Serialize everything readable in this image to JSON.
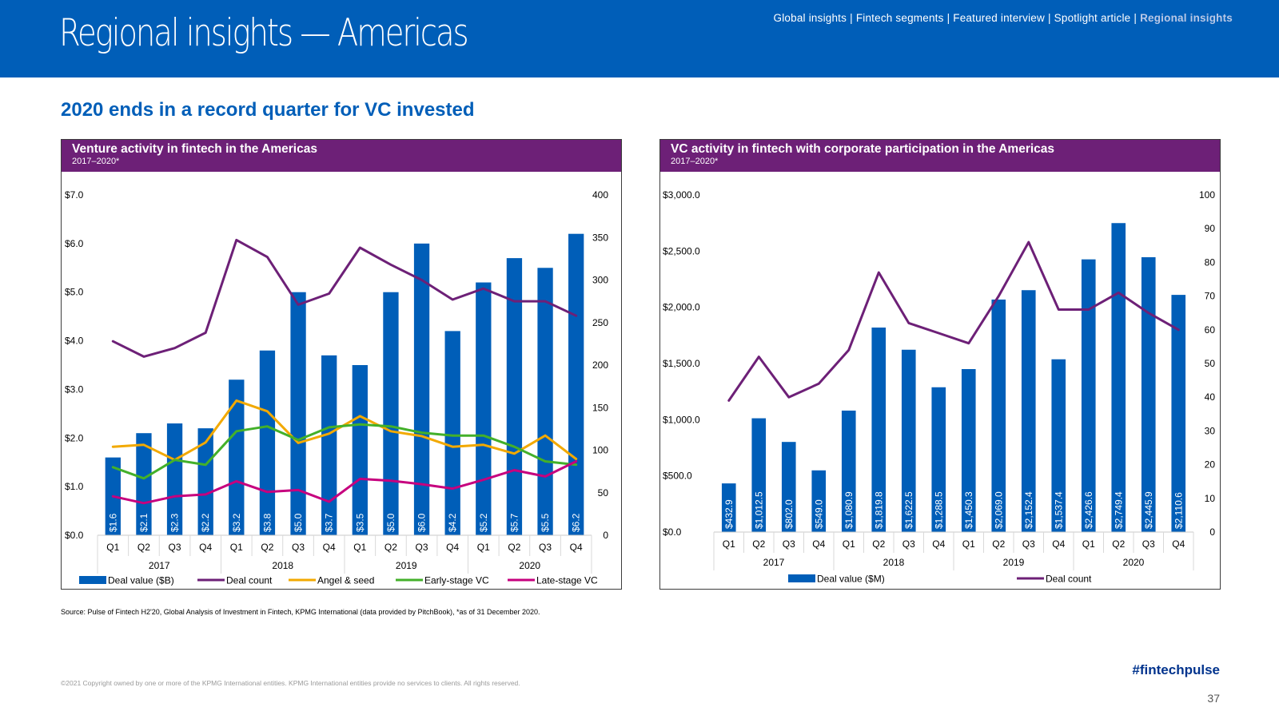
{
  "header": {
    "title": "Regional insights — Americas",
    "nav": [
      {
        "label": "Global insights",
        "active": false
      },
      {
        "label": "Fintech segments",
        "active": false
      },
      {
        "label": "Featured interview",
        "active": false
      },
      {
        "label": "Spotlight article",
        "active": false
      },
      {
        "label": "Regional insights",
        "active": true
      }
    ],
    "nav_separator": "|"
  },
  "subtitle": "2020 ends in a record quarter for VC invested",
  "source": "Source: Pulse of Fintech H2'20, Global Analysis of Investment in Fintech, KPMG International (data provided by PitchBook), *as of 31 December 2020.",
  "copyright": "©2021 Copyright owned by one or more of the KPMG International entities. KPMG International entities provide no services to clients. All rights reserved.",
  "hashtag": "#fintechpulse",
  "page_number": "37",
  "colors": {
    "header_bg": "#005eb8",
    "panel_head_bg": "#6d2077",
    "bar": "#005eb8",
    "deal_count": "#6d2077",
    "angel_seed": "#f2a900",
    "early_stage": "#43b02a",
    "late_stage": "#c6007e"
  },
  "chart_data": [
    {
      "type": "bar",
      "title": "Venture activity in fintech in the Americas",
      "subtitle": "2017–2020*",
      "categories": [
        "Q1",
        "Q2",
        "Q3",
        "Q4",
        "Q1",
        "Q2",
        "Q3",
        "Q4",
        "Q1",
        "Q2",
        "Q3",
        "Q4",
        "Q1",
        "Q2",
        "Q3",
        "Q4"
      ],
      "years": [
        "2017",
        "2018",
        "2019",
        "2020"
      ],
      "y_left": {
        "min": 0,
        "max": 7,
        "step": 1,
        "ticks": [
          "$0.0",
          "$1.0",
          "$2.0",
          "$3.0",
          "$4.0",
          "$5.0",
          "$6.0",
          "$7.0"
        ]
      },
      "y_right": {
        "min": 0,
        "max": 400,
        "step": 50,
        "ticks": [
          "0",
          "50",
          "100",
          "150",
          "200",
          "250",
          "300",
          "350",
          "400"
        ]
      },
      "bars": {
        "name": "Deal value ($B)",
        "values": [
          1.6,
          2.1,
          2.3,
          2.2,
          3.2,
          3.8,
          5.0,
          3.7,
          3.5,
          5.0,
          6.0,
          4.2,
          5.2,
          5.7,
          5.5,
          6.2
        ],
        "labels": [
          "$1.6",
          "$2.1",
          "$2.3",
          "$2.2",
          "$3.2",
          "$3.8",
          "$5.0",
          "$3.7",
          "$3.5",
          "$5.0",
          "$6.0",
          "$4.2",
          "$5.2",
          "$5.7",
          "$5.5",
          "$6.2"
        ]
      },
      "lines": [
        {
          "name": "Deal count",
          "color": "#6d2077",
          "axis": "right",
          "values": [
            228,
            210,
            220,
            238,
            347,
            327,
            271,
            284,
            338,
            318,
            300,
            277,
            290,
            275,
            275,
            258
          ]
        },
        {
          "name": "Angel & seed",
          "color": "#f2a900",
          "axis": "left",
          "values": [
            1.82,
            1.86,
            1.55,
            1.91,
            2.77,
            2.55,
            1.9,
            2.09,
            2.45,
            2.14,
            2.04,
            1.82,
            1.86,
            1.68,
            2.05,
            1.57
          ]
        },
        {
          "name": "Early-stage VC",
          "color": "#43b02a",
          "axis": "left",
          "values": [
            1.4,
            1.17,
            1.55,
            1.45,
            2.14,
            2.24,
            1.96,
            2.22,
            2.28,
            2.24,
            2.11,
            2.05,
            2.05,
            1.82,
            1.52,
            1.45
          ]
        },
        {
          "name": "Late-stage VC",
          "color": "#c6007e",
          "axis": "left",
          "values": [
            0.8,
            0.66,
            0.8,
            0.84,
            1.11,
            0.89,
            0.93,
            0.69,
            1.16,
            1.12,
            1.05,
            0.96,
            1.14,
            1.34,
            1.21,
            1.52
          ]
        }
      ],
      "legend": "bottom",
      "grid": false
    },
    {
      "type": "bar",
      "title": "VC activity in fintech with corporate participation in the Americas",
      "subtitle": "2017–2020*",
      "categories": [
        "Q1",
        "Q2",
        "Q3",
        "Q4",
        "Q1",
        "Q2",
        "Q3",
        "Q4",
        "Q1",
        "Q2",
        "Q3",
        "Q4",
        "Q1",
        "Q2",
        "Q3",
        "Q4"
      ],
      "years": [
        "2017",
        "2018",
        "2019",
        "2020"
      ],
      "y_left": {
        "min": 0,
        "max": 3000,
        "step": 500,
        "ticks": [
          "$0.0",
          "$500.0",
          "$1,000.0",
          "$1,500.0",
          "$2,000.0",
          "$2,500.0",
          "$3,000.0"
        ]
      },
      "y_right": {
        "min": 0,
        "max": 100,
        "step": 10,
        "ticks": [
          "0",
          "10",
          "20",
          "30",
          "40",
          "50",
          "60",
          "70",
          "80",
          "90",
          "100"
        ]
      },
      "bars": {
        "name": "Deal value ($M)",
        "values": [
          432.9,
          1012.5,
          802.0,
          549.0,
          1080.9,
          1819.8,
          1622.5,
          1288.5,
          1450.3,
          2069.0,
          2152.4,
          1537.4,
          2426.6,
          2749.4,
          2445.9,
          2110.6
        ],
        "labels": [
          "$432.9",
          "$1,012.5",
          "$802.0",
          "$549.0",
          "$1,080.9",
          "$1,819.8",
          "$1,622.5",
          "$1,288.5",
          "$1,450.3",
          "$2,069.0",
          "$2,152.4",
          "$1,537.4",
          "$2,426.6",
          "$2,749.4",
          "$2,445.9",
          "$2,110.6"
        ]
      },
      "lines": [
        {
          "name": "Deal count",
          "color": "#6d2077",
          "axis": "right",
          "values": [
            39,
            52,
            40,
            44,
            54,
            77,
            62,
            59,
            56,
            70,
            86,
            66,
            66,
            71,
            65,
            60
          ]
        }
      ],
      "legend": "bottom",
      "grid": false
    }
  ]
}
